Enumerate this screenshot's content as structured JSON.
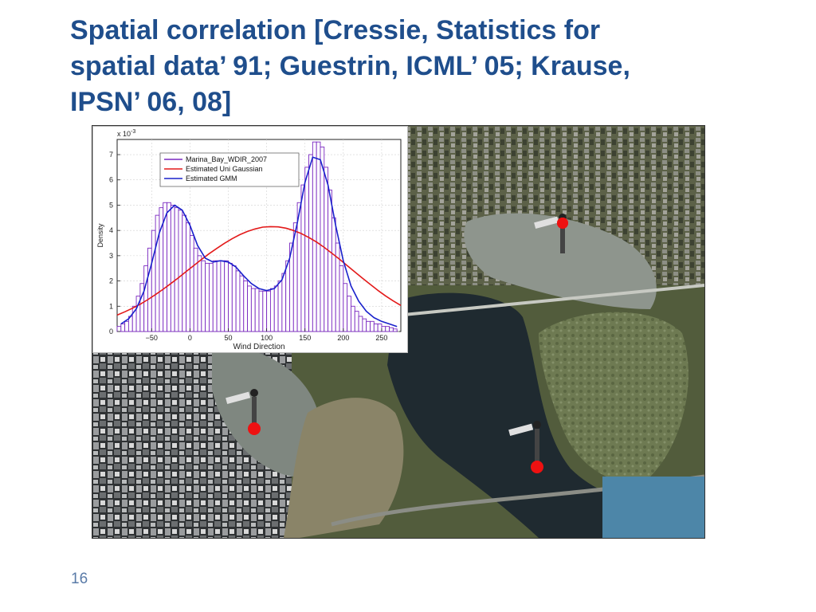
{
  "slide": {
    "title_lines": [
      "Spatial correlation [Cressie, Statistics for",
      "spatial data’ 91; Guestrin, ICML’ 05; Krause,",
      "IPSN’ 06, 08]"
    ],
    "page_number": "16"
  },
  "map": {
    "description_icon": "satellite-map",
    "sensor_icon": "wind-vane-icon",
    "sensor_count": 3,
    "marker_color": "#ee1111"
  },
  "chart_data": {
    "type": "bar",
    "exponent_label": "x 10",
    "exponent_power": "-3",
    "xlabel": "Wind Direction",
    "ylabel": "Density",
    "xlim": [
      -95,
      275
    ],
    "ylim": [
      0,
      7.6
    ],
    "xticks": [
      -50,
      0,
      50,
      100,
      150,
      200,
      250
    ],
    "xtick_labels": [
      "−50",
      "0",
      "50",
      "100",
      "150",
      "200",
      "250"
    ],
    "yticks": [
      0,
      1,
      2,
      3,
      4,
      5,
      6,
      7
    ],
    "grid": true,
    "legend_position": "top-left",
    "bin_width": 5,
    "histogram": {
      "name": "Marina_Bay_WDIR_2007",
      "color": "#7a28c0",
      "x": [
        -92.5,
        -87.5,
        -82.5,
        -77.5,
        -72.5,
        -67.5,
        -62.5,
        -57.5,
        -52.5,
        -47.5,
        -42.5,
        -37.5,
        -32.5,
        -27.5,
        -22.5,
        -17.5,
        -12.5,
        -7.5,
        -2.5,
        2.5,
        7.5,
        12.5,
        17.5,
        22.5,
        27.5,
        32.5,
        37.5,
        42.5,
        47.5,
        52.5,
        57.5,
        62.5,
        67.5,
        72.5,
        77.5,
        82.5,
        87.5,
        92.5,
        97.5,
        102.5,
        107.5,
        112.5,
        117.5,
        122.5,
        127.5,
        132.5,
        137.5,
        142.5,
        147.5,
        152.5,
        157.5,
        162.5,
        167.5,
        172.5,
        177.5,
        182.5,
        187.5,
        192.5,
        197.5,
        202.5,
        207.5,
        212.5,
        217.5,
        222.5,
        227.5,
        232.5,
        237.5,
        242.5,
        247.5,
        252.5,
        257.5,
        262.5,
        267.5
      ],
      "values": [
        0.2,
        0.3,
        0.4,
        0.6,
        1.0,
        1.4,
        1.9,
        2.6,
        3.3,
        4.0,
        4.6,
        4.9,
        5.1,
        5.1,
        5.0,
        4.9,
        4.8,
        4.6,
        4.3,
        3.8,
        3.3,
        3.0,
        2.8,
        2.7,
        2.7,
        2.8,
        2.8,
        2.8,
        2.8,
        2.7,
        2.6,
        2.4,
        2.2,
        2.0,
        1.8,
        1.7,
        1.7,
        1.6,
        1.6,
        1.6,
        1.7,
        1.8,
        2.0,
        2.3,
        2.8,
        3.5,
        4.3,
        5.1,
        5.8,
        6.5,
        7.0,
        7.5,
        7.5,
        7.3,
        6.5,
        5.6,
        4.5,
        3.5,
        2.6,
        1.9,
        1.4,
        1.0,
        0.8,
        0.6,
        0.5,
        0.4,
        0.4,
        0.3,
        0.3,
        0.2,
        0.2,
        0.15,
        0.1
      ]
    },
    "series": [
      {
        "name": "Estimated Uni Gaussian",
        "color": "#e31a1a",
        "x": [
          -95,
          -85,
          -75,
          -65,
          -55,
          -45,
          -35,
          -25,
          -15,
          -5,
          5,
          15,
          25,
          35,
          45,
          55,
          65,
          75,
          85,
          95,
          105,
          115,
          125,
          135,
          145,
          155,
          165,
          175,
          185,
          195,
          205,
          215,
          225,
          235,
          245,
          255,
          265,
          275
        ],
        "values": [
          0.65,
          0.78,
          0.92,
          1.08,
          1.26,
          1.46,
          1.67,
          1.9,
          2.13,
          2.37,
          2.61,
          2.85,
          3.08,
          3.29,
          3.49,
          3.67,
          3.83,
          3.96,
          4.06,
          4.13,
          4.15,
          4.14,
          4.09,
          4.0,
          3.88,
          3.72,
          3.54,
          3.33,
          3.1,
          2.86,
          2.61,
          2.36,
          2.11,
          1.87,
          1.63,
          1.41,
          1.21,
          1.03
        ]
      },
      {
        "name": "Estimated GMM",
        "color": "#1a22cc",
        "x": [
          -90,
          -80,
          -70,
          -60,
          -50,
          -40,
          -30,
          -20,
          -10,
          0,
          10,
          20,
          30,
          40,
          50,
          60,
          70,
          80,
          90,
          100,
          110,
          120,
          130,
          140,
          150,
          160,
          170,
          180,
          190,
          200,
          210,
          220,
          230,
          240,
          250,
          260,
          270
        ],
        "values": [
          0.3,
          0.5,
          0.9,
          1.6,
          2.7,
          3.9,
          4.7,
          5.0,
          4.8,
          4.2,
          3.4,
          2.9,
          2.75,
          2.8,
          2.75,
          2.55,
          2.2,
          1.9,
          1.7,
          1.62,
          1.7,
          2.05,
          2.9,
          4.3,
          5.9,
          6.9,
          6.8,
          5.8,
          4.2,
          2.8,
          1.8,
          1.2,
          0.8,
          0.55,
          0.4,
          0.3,
          0.2
        ]
      }
    ]
  }
}
